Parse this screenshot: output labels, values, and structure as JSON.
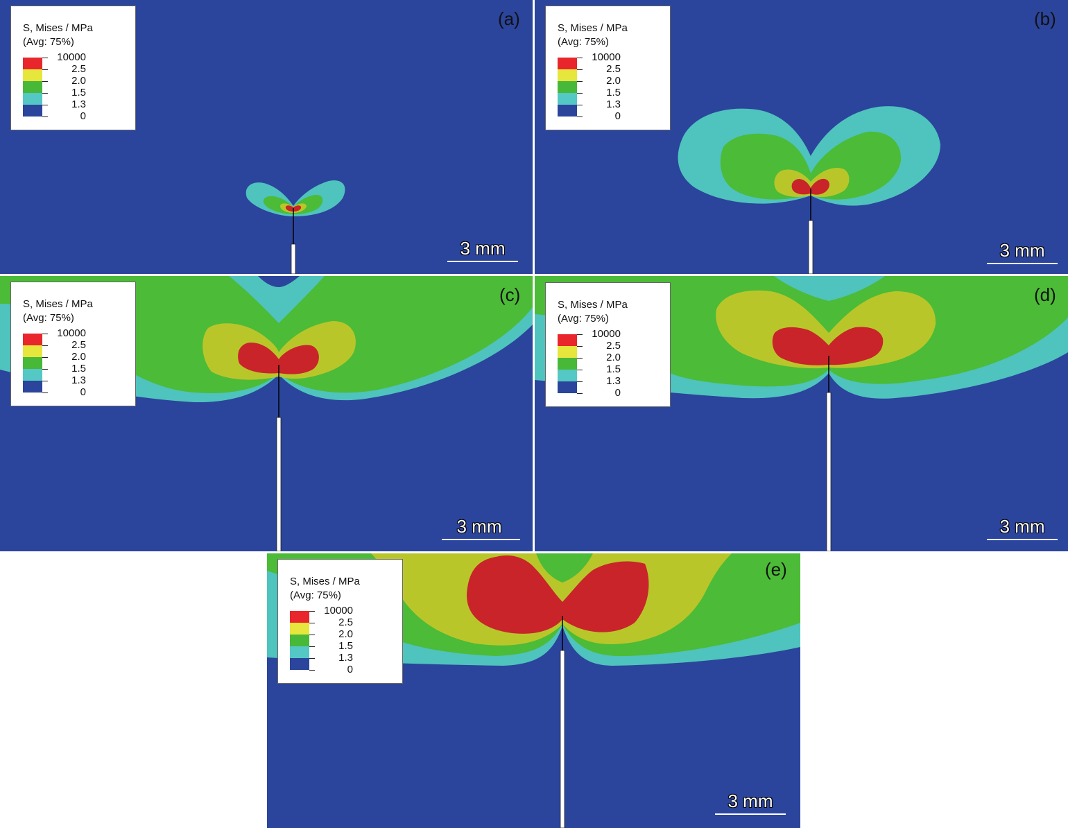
{
  "legend": {
    "title": "S, Mises / MPa",
    "avg": "(Avg: 75%)",
    "levels": [
      "10000",
      "2.5",
      "2.0",
      "1.5",
      "1.3",
      "0"
    ],
    "colors": [
      "#e8262b",
      "#e6e63c",
      "#48b838",
      "#54c8c4",
      "#2b449c"
    ]
  },
  "colors": {
    "background": "#2b449c",
    "cyan": "#4fc3bd",
    "green": "#4cbb37",
    "yellow": "#b9c62a",
    "red": "#c8242a",
    "crack": "#ffffff"
  },
  "scale_label": "3 mm",
  "panels": [
    {
      "label": "(a)"
    },
    {
      "label": "(b)"
    },
    {
      "label": "(c)"
    },
    {
      "label": "(d)"
    },
    {
      "label": "(e)"
    }
  ]
}
